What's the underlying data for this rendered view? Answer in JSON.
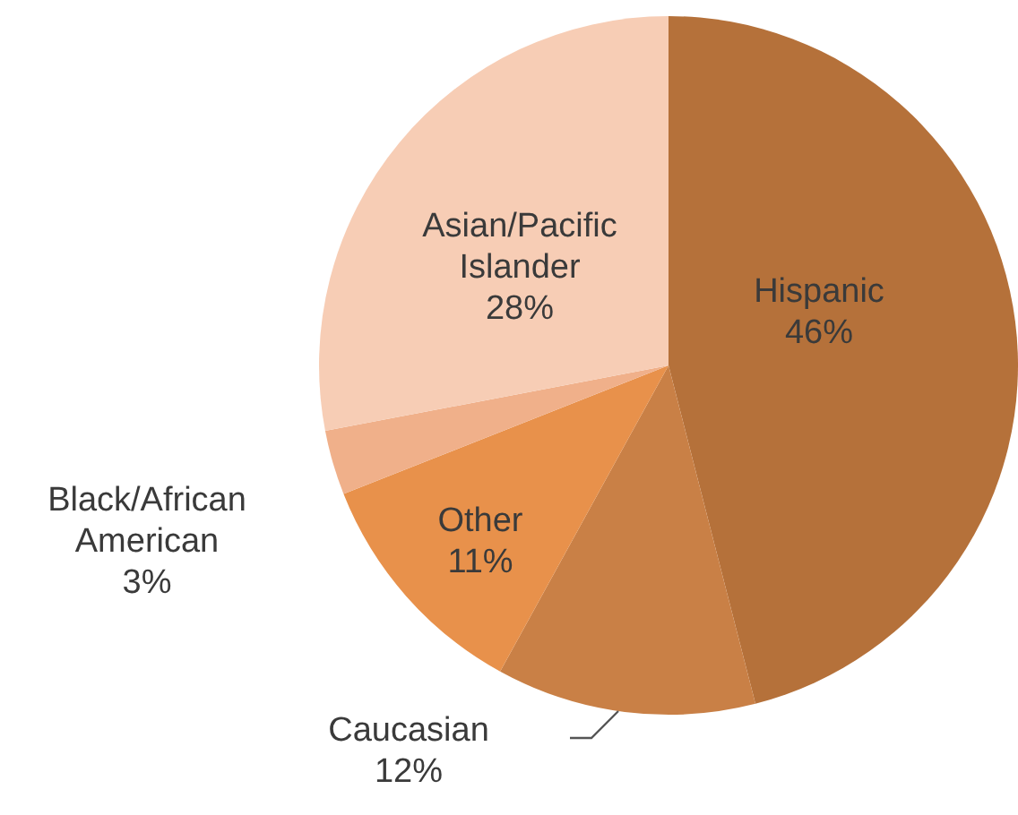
{
  "chart_data": {
    "type": "pie",
    "categories": [
      "Hispanic",
      "Caucasian",
      "Other",
      "Black/African American",
      "Asian/Pacific Islander"
    ],
    "values": [
      46,
      12,
      11,
      3,
      28
    ],
    "value_labels": [
      "46%",
      "12%",
      "11%",
      "3%",
      "28%"
    ],
    "colors": [
      "#b5713a",
      "#c98046",
      "#e8914b",
      "#f0b08a",
      "#f7cdb5"
    ],
    "legend": false
  }
}
